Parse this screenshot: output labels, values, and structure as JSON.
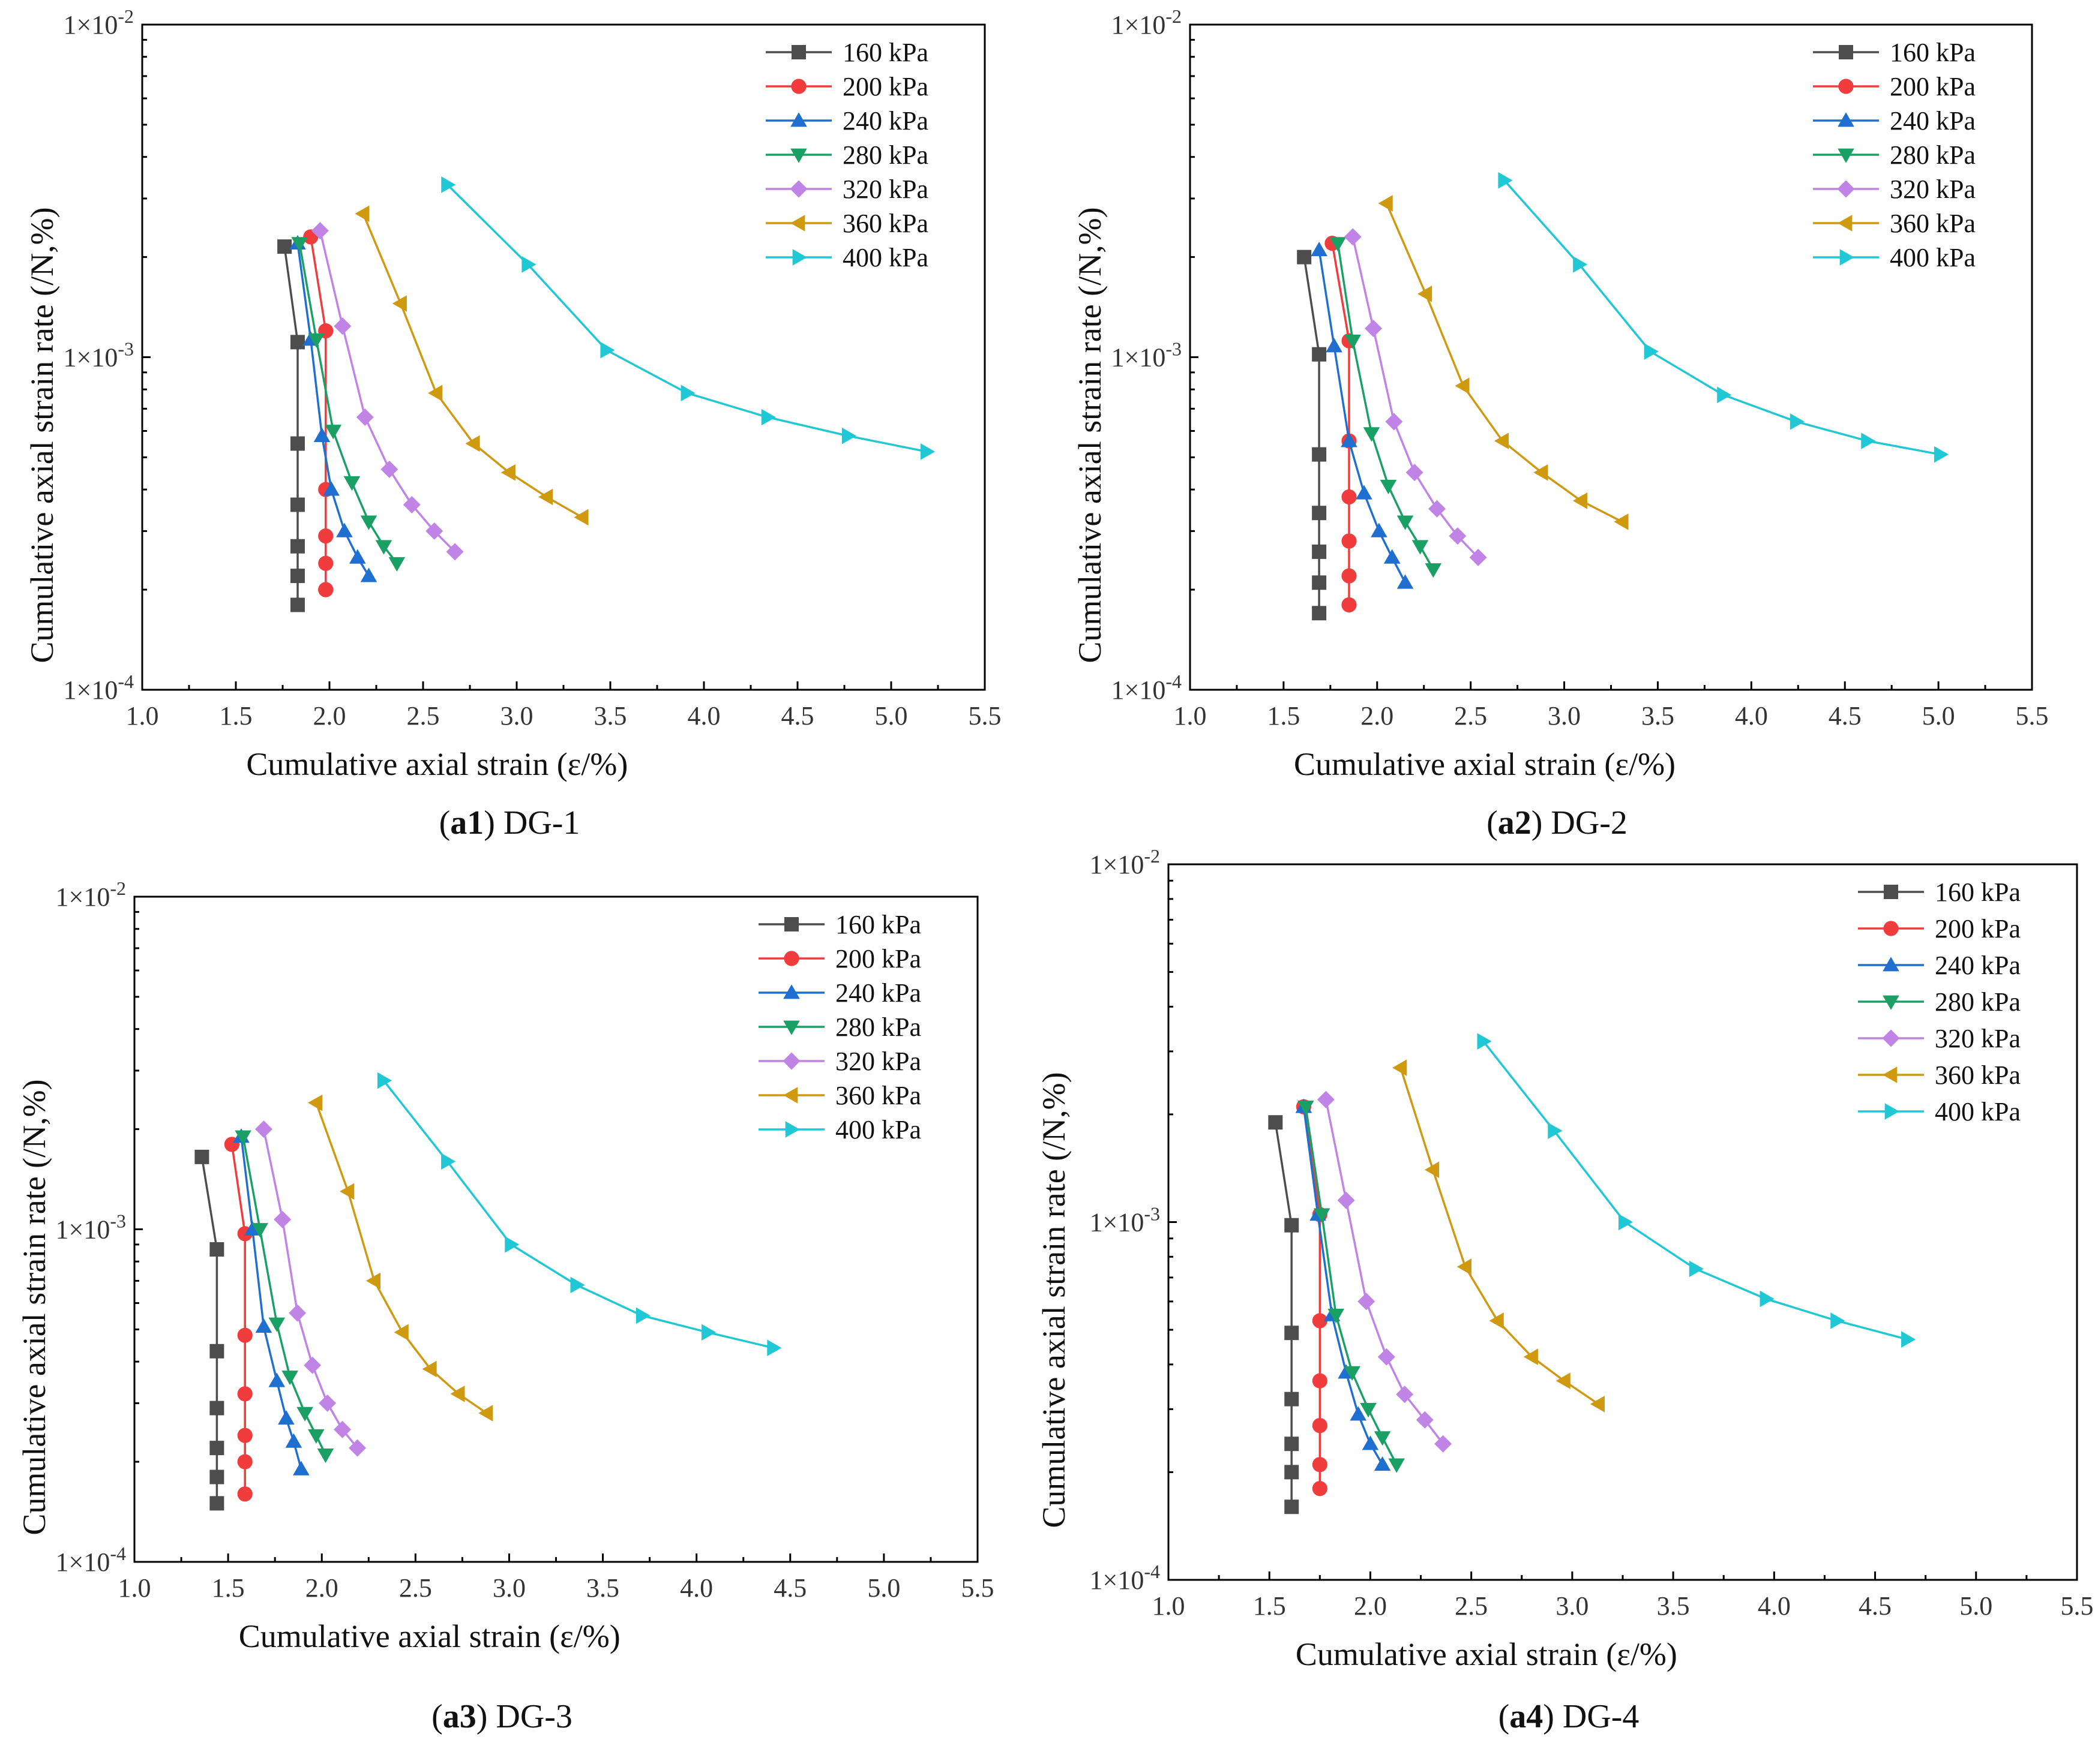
{
  "figure": {
    "ytick_base": "1×10",
    "ytick_exponents": [
      "-4",
      "-3",
      "-2"
    ],
    "xtick_labels": [
      "1.0",
      "1.5",
      "2.0",
      "2.5",
      "3.0",
      "3.5",
      "4.0",
      "4.5",
      "5.0",
      "5.5"
    ],
    "series_styles": [
      {
        "name": "160 kPa",
        "color": "#4d4d4d",
        "marker": "square"
      },
      {
        "name": "200 kPa",
        "color": "#f03c3c",
        "marker": "circle"
      },
      {
        "name": "240 kPa",
        "color": "#1f6fd1",
        "marker": "triangle-up"
      },
      {
        "name": "280 kPa",
        "color": "#1aa064",
        "marker": "triangle-down"
      },
      {
        "name": "320 kPa",
        "color": "#c084e6",
        "marker": "diamond"
      },
      {
        "name": "360 kPa",
        "color": "#cf9a10",
        "marker": "triangle-left"
      },
      {
        "name": "400 kPa",
        "color": "#1fc8d4",
        "marker": "triangle-right"
      }
    ]
  },
  "chart_data": [
    {
      "id": "a1",
      "type": "line",
      "caption_prefix": "(",
      "caption_bold": "a1",
      "caption_suffix": ") DG-1",
      "xlabel": "Cumulative axial strain (ε/%)",
      "ylabel": "Cumulative axial strain rate (/N,%)",
      "xlim": [
        1.0,
        5.5
      ],
      "ylim": [
        0.0001,
        0.01
      ],
      "yscale": "log",
      "legend_position": "top-right",
      "series": [
        {
          "name": "160 kPa",
          "x": [
            1.76,
            1.83,
            1.83,
            1.83,
            1.83,
            1.83,
            1.83
          ],
          "y": [
            0.00215,
            0.00111,
            0.00055,
            0.00036,
            0.00027,
            0.00022,
            0.00018
          ]
        },
        {
          "name": "200 kPa",
          "x": [
            1.9,
            1.98,
            1.98,
            1.98,
            1.98,
            1.98,
            1.98
          ],
          "y": [
            0.0023,
            0.0012,
            0.0004,
            0.00029,
            0.00024,
            0.0002,
            0.0002
          ]
        },
        {
          "name": "240 kPa",
          "x": [
            1.83,
            1.9,
            1.96,
            2.01,
            2.08,
            2.15,
            2.21
          ],
          "y": [
            0.0022,
            0.00113,
            0.00058,
            0.0004,
            0.0003,
            0.00025,
            0.00022
          ]
        },
        {
          "name": "280 kPa",
          "x": [
            1.84,
            1.93,
            2.02,
            2.12,
            2.21,
            2.29,
            2.36
          ],
          "y": [
            0.0022,
            0.00113,
            0.0006,
            0.00042,
            0.00032,
            0.00027,
            0.00024
          ]
        },
        {
          "name": "320 kPa",
          "x": [
            1.95,
            2.07,
            2.19,
            2.32,
            2.44,
            2.56,
            2.67
          ],
          "y": [
            0.0024,
            0.00124,
            0.00066,
            0.00046,
            0.00036,
            0.0003,
            0.00026
          ]
        },
        {
          "name": "360 kPa",
          "x": [
            2.18,
            2.38,
            2.57,
            2.77,
            2.96,
            3.16,
            3.35
          ],
          "y": [
            0.0027,
            0.00145,
            0.00078,
            0.00055,
            0.00045,
            0.00038,
            0.00033
          ]
        },
        {
          "name": "400 kPa",
          "x": [
            2.63,
            3.06,
            3.48,
            3.91,
            4.34,
            4.77,
            5.19
          ],
          "y": [
            0.0033,
            0.0019,
            0.00105,
            0.00078,
            0.00066,
            0.00058,
            0.00052
          ]
        }
      ]
    },
    {
      "id": "a2",
      "type": "line",
      "caption_prefix": "(",
      "caption_bold": "a2",
      "caption_suffix": ") DG-2",
      "xlabel": "Cumulative axial strain (ε/%)",
      "ylabel": "Cumulative axial strain rate (/N,%)",
      "xlim": [
        1.0,
        5.5
      ],
      "ylim": [
        0.0001,
        0.01
      ],
      "yscale": "log",
      "legend_position": "top-right",
      "series": [
        {
          "name": "160 kPa",
          "x": [
            1.61,
            1.69,
            1.69,
            1.69,
            1.69,
            1.69,
            1.69
          ],
          "y": [
            0.002,
            0.00102,
            0.00051,
            0.00034,
            0.00026,
            0.00021,
            0.00017
          ]
        },
        {
          "name": "200 kPa",
          "x": [
            1.76,
            1.85,
            1.85,
            1.85,
            1.85,
            1.85,
            1.85
          ],
          "y": [
            0.0022,
            0.00112,
            0.00056,
            0.00038,
            0.00028,
            0.00022,
            0.00018
          ]
        },
        {
          "name": "240 kPa",
          "x": [
            1.69,
            1.77,
            1.85,
            1.93,
            2.01,
            2.08,
            2.15
          ],
          "y": [
            0.0021,
            0.00108,
            0.00056,
            0.00039,
            0.0003,
            0.00025,
            0.00021
          ]
        },
        {
          "name": "280 kPa",
          "x": [
            1.79,
            1.87,
            1.97,
            2.06,
            2.15,
            2.23,
            2.3
          ],
          "y": [
            0.0022,
            0.00112,
            0.00059,
            0.00041,
            0.00032,
            0.00027,
            0.00023
          ]
        },
        {
          "name": "320 kPa",
          "x": [
            1.87,
            1.98,
            2.09,
            2.2,
            2.32,
            2.43,
            2.54
          ],
          "y": [
            0.0023,
            0.00122,
            0.00064,
            0.00045,
            0.00035,
            0.00029,
            0.00025
          ]
        },
        {
          "name": "360 kPa",
          "x": [
            2.05,
            2.26,
            2.46,
            2.67,
            2.88,
            3.09,
            3.31
          ],
          "y": [
            0.0029,
            0.00155,
            0.00082,
            0.00056,
            0.00045,
            0.00037,
            0.00032
          ]
        },
        {
          "name": "400 kPa",
          "x": [
            2.68,
            3.08,
            3.46,
            3.85,
            4.24,
            4.62,
            5.01
          ],
          "y": [
            0.0034,
            0.0019,
            0.00104,
            0.00077,
            0.00064,
            0.00056,
            0.00051
          ]
        }
      ]
    },
    {
      "id": "a3",
      "type": "line",
      "caption_prefix": "(",
      "caption_bold": "a3",
      "caption_suffix": ") DG-3",
      "xlabel": "Cumulative axial strain (ε/%)",
      "ylabel": "Cumulative axial strain rate (/N,%)",
      "xlim": [
        1.0,
        5.5
      ],
      "ylim": [
        0.0001,
        0.01
      ],
      "yscale": "log",
      "legend_position": "top-right",
      "series": [
        {
          "name": "160 kPa",
          "x": [
            1.36,
            1.44,
            1.44,
            1.44,
            1.44,
            1.44,
            1.44
          ],
          "y": [
            0.00165,
            0.00087,
            0.00043,
            0.00029,
            0.00022,
            0.00018,
            0.00015
          ]
        },
        {
          "name": "200 kPa",
          "x": [
            1.52,
            1.59,
            1.59,
            1.59,
            1.59,
            1.59,
            1.59
          ],
          "y": [
            0.0018,
            0.00097,
            0.00048,
            0.00032,
            0.00024,
            0.0002,
            0.00016
          ]
        },
        {
          "name": "240 kPa",
          "x": [
            1.57,
            1.63,
            1.69,
            1.76,
            1.81,
            1.85,
            1.89
          ],
          "y": [
            0.0019,
            0.001,
            0.00051,
            0.00035,
            0.00027,
            0.00023,
            0.00019
          ]
        },
        {
          "name": "280 kPa",
          "x": [
            1.58,
            1.67,
            1.76,
            1.83,
            1.91,
            1.97,
            2.02
          ],
          "y": [
            0.0019,
            0.001,
            0.00052,
            0.00036,
            0.00028,
            0.00024,
            0.00021
          ]
        },
        {
          "name": "320 kPa",
          "x": [
            1.69,
            1.79,
            1.87,
            1.95,
            2.03,
            2.11,
            2.19
          ],
          "y": [
            0.002,
            0.00107,
            0.00056,
            0.00039,
            0.0003,
            0.00025,
            0.00022
          ]
        },
        {
          "name": "360 kPa",
          "x": [
            1.97,
            2.14,
            2.28,
            2.43,
            2.58,
            2.73,
            2.88
          ],
          "y": [
            0.0024,
            0.0013,
            0.0007,
            0.00049,
            0.00038,
            0.00032,
            0.00028
          ]
        },
        {
          "name": "400 kPa",
          "x": [
            2.33,
            2.67,
            3.01,
            3.36,
            3.71,
            4.06,
            4.41
          ],
          "y": [
            0.0028,
            0.0016,
            0.0009,
            0.00068,
            0.00055,
            0.00049,
            0.00044
          ]
        }
      ]
    },
    {
      "id": "a4",
      "type": "line",
      "caption_prefix": "(",
      "caption_bold": "a4",
      "caption_suffix": ") DG-4",
      "xlabel": "Cumulative axial strain (ε/%)",
      "ylabel": "Cumulative axial strain rate (/N,%)",
      "xlim": [
        1.0,
        5.5
      ],
      "ylim": [
        0.0001,
        0.01
      ],
      "yscale": "log",
      "legend_position": "top-right",
      "series": [
        {
          "name": "160 kPa",
          "x": [
            1.53,
            1.61,
            1.61,
            1.61,
            1.61,
            1.61,
            1.61
          ],
          "y": [
            0.0019,
            0.00098,
            0.00049,
            0.00032,
            0.00024,
            0.0002,
            0.00016
          ]
        },
        {
          "name": "200 kPa",
          "x": [
            1.67,
            1.75,
            1.75,
            1.75,
            1.75,
            1.75,
            1.75
          ],
          "y": [
            0.0021,
            0.00105,
            0.00053,
            0.00036,
            0.00027,
            0.00021,
            0.00018
          ]
        },
        {
          "name": "240 kPa",
          "x": [
            1.67,
            1.74,
            1.81,
            1.88,
            1.94,
            2.0,
            2.06
          ],
          "y": [
            0.0021,
            0.00105,
            0.00055,
            0.00038,
            0.00029,
            0.00024,
            0.00021
          ]
        },
        {
          "name": "280 kPa",
          "x": [
            1.68,
            1.76,
            1.83,
            1.91,
            1.99,
            2.06,
            2.13
          ],
          "y": [
            0.0021,
            0.00105,
            0.00055,
            0.00038,
            0.0003,
            0.00025,
            0.00021
          ]
        },
        {
          "name": "320 kPa",
          "x": [
            1.78,
            1.88,
            1.98,
            2.08,
            2.17,
            2.27,
            2.36
          ],
          "y": [
            0.0022,
            0.00115,
            0.0006,
            0.00042,
            0.00033,
            0.00028,
            0.00024
          ]
        },
        {
          "name": "360 kPa",
          "x": [
            2.15,
            2.31,
            2.47,
            2.63,
            2.8,
            2.96,
            3.13
          ],
          "y": [
            0.0027,
            0.0014,
            0.00075,
            0.00053,
            0.00042,
            0.00036,
            0.00031
          ]
        },
        {
          "name": "400 kPa",
          "x": [
            2.56,
            2.91,
            3.26,
            3.61,
            3.96,
            4.31,
            4.66
          ],
          "y": [
            0.0032,
            0.0018,
            0.001,
            0.00074,
            0.00061,
            0.00053,
            0.00047
          ]
        }
      ]
    }
  ]
}
